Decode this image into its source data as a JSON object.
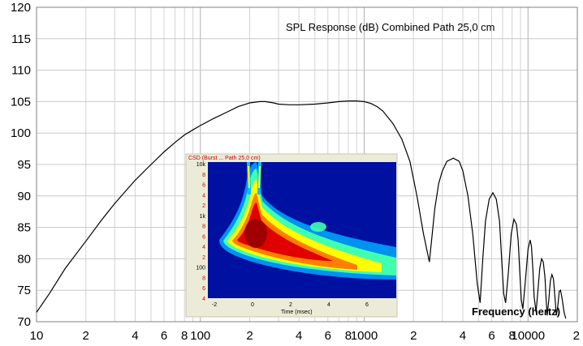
{
  "chart_data": {
    "type": "line",
    "title": "SPL Response (dB)   Combined   Path 25,0 cm",
    "xlabel": "Frequency (hertz)",
    "ylabel": "",
    "x_scale": "log",
    "xlim": [
      10,
      20000
    ],
    "ylim": [
      70,
      120
    ],
    "grid": true,
    "y_ticks": [
      "70",
      "75",
      "80",
      "85",
      "90",
      "95",
      "100",
      "105",
      "110",
      "115",
      "120"
    ],
    "x_ticks": [
      {
        "value": 10,
        "label": "10"
      },
      {
        "value": 20,
        "label": "2"
      },
      {
        "value": 40,
        "label": "4"
      },
      {
        "value": 60,
        "label": "6"
      },
      {
        "value": 80,
        "label": "8"
      },
      {
        "value": 100,
        "label": "100"
      },
      {
        "value": 200,
        "label": "2"
      },
      {
        "value": 400,
        "label": "4"
      },
      {
        "value": 600,
        "label": "6"
      },
      {
        "value": 800,
        "label": "8"
      },
      {
        "value": 1000,
        "label": "1000"
      },
      {
        "value": 2000,
        "label": "2"
      },
      {
        "value": 4000,
        "label": "4"
      },
      {
        "value": 6000,
        "label": "6"
      },
      {
        "value": 8000,
        "label": "8"
      },
      {
        "value": 10000,
        "label": "10000"
      },
      {
        "value": 20000,
        "label": "2"
      }
    ],
    "series": [
      {
        "color": "#000000",
        "x": [
          10,
          12,
          15,
          20,
          25,
          30,
          40,
          50,
          60,
          70,
          80,
          90,
          100,
          120,
          150,
          170,
          200,
          230,
          250,
          280,
          300,
          350,
          400,
          500,
          600,
          700,
          800,
          900,
          1000,
          1100,
          1200,
          1300,
          1500,
          1700,
          1900,
          2100,
          2300,
          2500,
          2700,
          2850,
          3000,
          3200,
          3500,
          3800,
          4000,
          4300,
          4600,
          4900,
          5100,
          5300,
          5500,
          5800,
          6100,
          6400,
          6700,
          6900,
          7100,
          7300,
          7600,
          7900,
          8200,
          8500,
          8700,
          8900,
          9100,
          9300,
          9600,
          10000,
          10300,
          10500,
          10700,
          10900,
          11200,
          11500,
          11800,
          12100,
          12400,
          12700,
          12900,
          13100,
          13400,
          13700,
          14000,
          14300,
          14600,
          14900,
          15200,
          15500,
          15800,
          16200,
          16600,
          17000
        ],
        "y": [
          71.5,
          74.5,
          78.5,
          82.8,
          86.2,
          88.8,
          92.5,
          95.0,
          97.0,
          98.5,
          99.7,
          100.5,
          101.2,
          102.3,
          103.5,
          104.2,
          104.8,
          105.0,
          105.0,
          104.8,
          104.6,
          104.5,
          104.5,
          104.6,
          104.8,
          105.0,
          105.1,
          105.1,
          105.0,
          104.7,
          104.2,
          103.5,
          101.5,
          99.0,
          95.5,
          90.0,
          84.0,
          79.5,
          88.0,
          92.0,
          94.0,
          95.5,
          96.0,
          95.5,
          94.0,
          90.0,
          84.0,
          76.0,
          73.0,
          80.0,
          86.0,
          89.5,
          90.5,
          89.5,
          86.0,
          80.0,
          74.5,
          73.0,
          78.0,
          84.0,
          86.3,
          85.5,
          83.0,
          78.0,
          73.5,
          72.0,
          76.0,
          81.5,
          83.0,
          82.0,
          78.5,
          74.0,
          71.5,
          75.0,
          78.5,
          80.0,
          79.5,
          77.0,
          73.5,
          71.0,
          73.5,
          76.5,
          77.5,
          76.8,
          74.0,
          71.0,
          72.5,
          74.8,
          75.0,
          73.5,
          71.5,
          70.5
        ]
      }
    ]
  },
  "inset": {
    "title": "CSD (Burst ... Path 25,0 cm)",
    "xlabel": "Time (msec)",
    "x_ticks": [
      "-2",
      "0",
      "2",
      "4",
      "6"
    ],
    "y_ticks": [
      "10k",
      "8",
      "6",
      "4",
      "2",
      "1k",
      "8",
      "6",
      "4",
      "2",
      "100",
      "8",
      "6",
      "4"
    ],
    "colormap": [
      "#0010a0",
      "#0040ff",
      "#00c0ff",
      "#40ffb0",
      "#ffff00",
      "#ff8000",
      "#e00000",
      "#a00000"
    ]
  }
}
